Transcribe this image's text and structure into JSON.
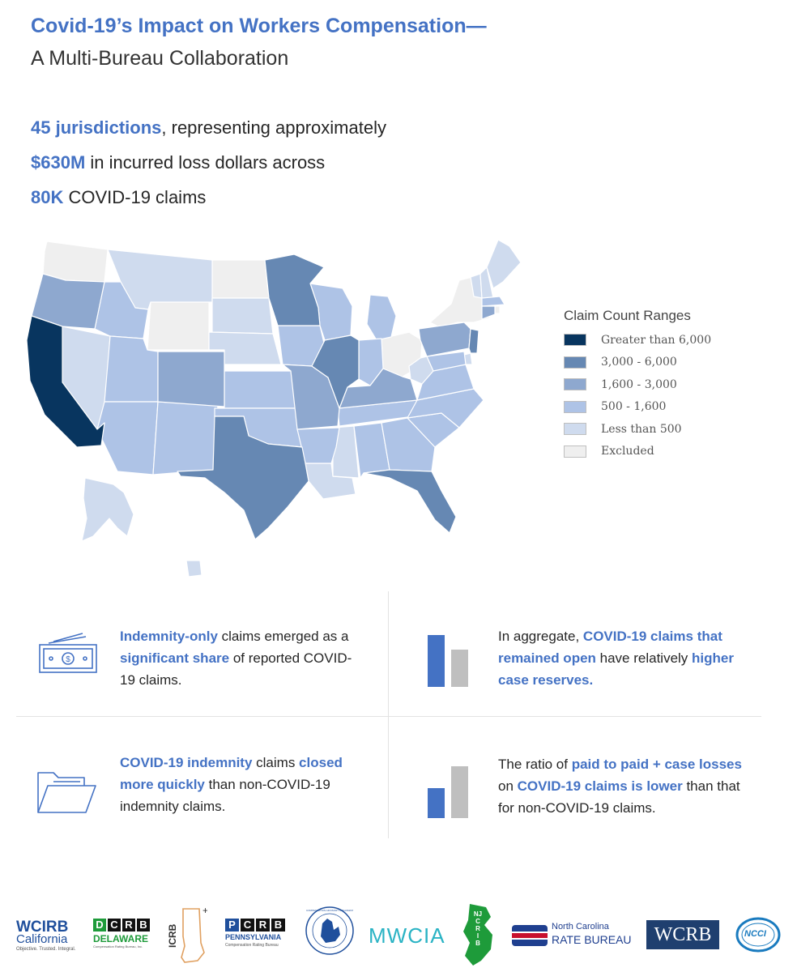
{
  "header": {
    "title": "Covid-19’s Impact on Workers Compensation—",
    "subtitle": "A Multi-Bureau Collaboration"
  },
  "stats": [
    {
      "value": "45 jurisdictions",
      "text": ", representing approximately"
    },
    {
      "value": "$630M",
      "text": " in incurred loss dollars across"
    },
    {
      "value": "80K",
      "text": " COVID-19 claims"
    }
  ],
  "legend": {
    "title": "Claim Count Ranges",
    "items": [
      {
        "label": "Greater than 6,000",
        "color": "#08355f"
      },
      {
        "label": "3,000 - 6,000",
        "color": "#6688b3"
      },
      {
        "label": "1,600 - 3,000",
        "color": "#8ea8cf"
      },
      {
        "label": "500 - 1,600",
        "color": "#aec3e6"
      },
      {
        "label": "Less than 500",
        "color": "#cfdbee"
      },
      {
        "label": "Excluded",
        "color": "#efefef"
      }
    ]
  },
  "findings": {
    "f1": {
      "p1": "Indemnity-only",
      "p2": " claims emerged as a ",
      "p3": "significant share",
      "p4": " of reported COVID-19 claims."
    },
    "f2": {
      "p1": "In aggregate, ",
      "p2": "COVID-19 claims that remained open",
      "p3": " have relatively ",
      "p4": "higher case reserves."
    },
    "f3": {
      "p1": "COVID-19 indemnity",
      "p2": " claims ",
      "p3": "closed more quickly",
      "p4": " than non-COVID-19 indemnity claims."
    },
    "f4": {
      "p1": "The ratio of ",
      "p2": "paid to paid + case losses",
      "p3": " on ",
      "p4": "COVID-19 claims is lower",
      "p5": " than that for non-COVID-19 claims."
    }
  },
  "logos": {
    "wcirb": {
      "line1": "WCIRB",
      "line2": "California",
      "tag": "Objective. Trusted. Integral."
    },
    "dcrb": {
      "letters": [
        "D",
        "C",
        "R",
        "B"
      ],
      "name": "DELAWARE",
      "sub": "Compensation Rating Bureau, Inc."
    },
    "icrb": {
      "name": "ICRB"
    },
    "pcrb": {
      "letters": [
        "P",
        "C",
        "R",
        "B"
      ],
      "name": "PENNSYLVANIA",
      "sub": "Compensation Rating Bureau"
    },
    "michigan": {
      "ring": "COMPENSATION ADVISORY ORGANIZATION OF MICHIGAN"
    },
    "mwcia": {
      "name": "MWCIA"
    },
    "njcrib": {
      "letters": [
        "N",
        "J",
        "C",
        "R",
        "I",
        "B"
      ]
    },
    "ncrb": {
      "line1": "North Carolina",
      "line2": "RATE BUREAU"
    },
    "wcrb": {
      "name": "WCRB"
    },
    "ncci": {
      "name": "NCCI"
    }
  },
  "colors": {
    "accent": "#4472C4",
    "bar_gray": "#bfbfbf"
  }
}
